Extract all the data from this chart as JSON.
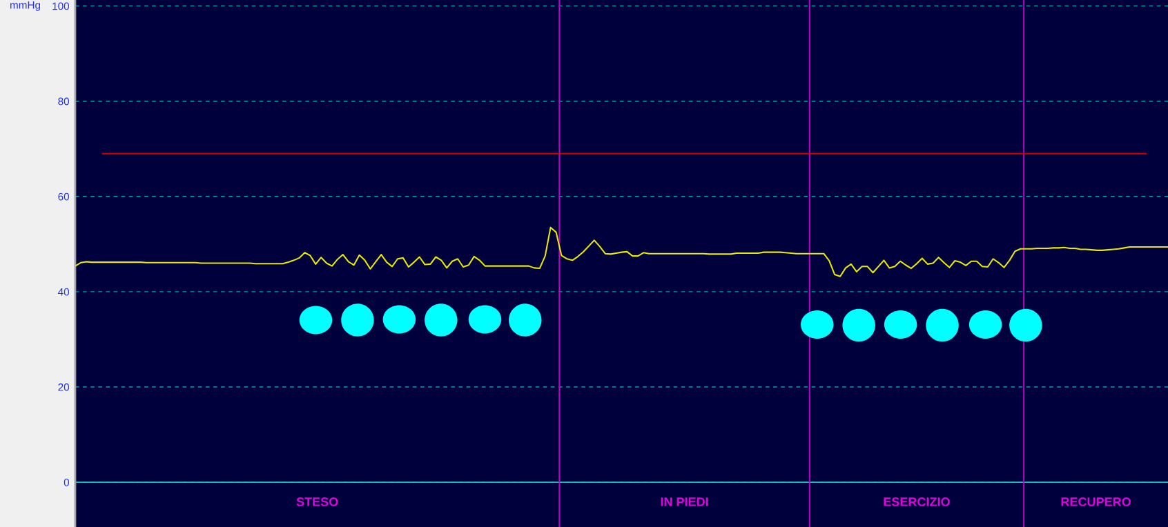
{
  "chart_data": {
    "type": "line",
    "ylabel": "mmHg",
    "categories": [
      null,
      null,
      null,
      null,
      null,
      null,
      null,
      null,
      null,
      null,
      null,
      null,
      null,
      null,
      null,
      null,
      null,
      null,
      null,
      null,
      null,
      null,
      null,
      null,
      null,
      null,
      null,
      null,
      null,
      null,
      null,
      null,
      null,
      null,
      null,
      null,
      null,
      null,
      null,
      null,
      null,
      null,
      null,
      null,
      null,
      null,
      null,
      null,
      null,
      null,
      null,
      null,
      null,
      null,
      null,
      null,
      null,
      null,
      null,
      null,
      null,
      null,
      null,
      null,
      null,
      null,
      null,
      null,
      null,
      null,
      null,
      null,
      null,
      null,
      null,
      null,
      null,
      null,
      null,
      null,
      null,
      null,
      null,
      null,
      null,
      null,
      null,
      null,
      null,
      null,
      null,
      null,
      null,
      null,
      null,
      null,
      null,
      null,
      null,
      null,
      null,
      null,
      null,
      null,
      null,
      null,
      null,
      null,
      null,
      null,
      null,
      null,
      null,
      null,
      null,
      null,
      null,
      null,
      null,
      null,
      null,
      null,
      null,
      null,
      null,
      null,
      null,
      null,
      null,
      null,
      null,
      null,
      null,
      null,
      null,
      null,
      null,
      null,
      null,
      null,
      null,
      null,
      null,
      null,
      null,
      null,
      null,
      null,
      null,
      null,
      null,
      null,
      null,
      null,
      null,
      null,
      null,
      null,
      null,
      null,
      null,
      null,
      null,
      null,
      null,
      null,
      null,
      null,
      null,
      null,
      null,
      null,
      null,
      null,
      null,
      null,
      null,
      null,
      null,
      null,
      null,
      null,
      null,
      null,
      null,
      null,
      null,
      null,
      null,
      null,
      null,
      null,
      null,
      null,
      null,
      null,
      null,
      null,
      null,
      null,
      null
    ],
    "ylim": [
      -9.4,
      101.25
    ],
    "yticks": [
      0,
      20,
      40,
      60,
      80,
      100
    ],
    "tick_labels": "y",
    "grid": "y",
    "marker": "none",
    "line_style": "solid",
    "series": [
      {
        "color": "#e8e800",
        "values": [
          45.4,
          46.1,
          46.3,
          46.2,
          46.2,
          46.2,
          46.2,
          46.2,
          46.2,
          46.2,
          46.2,
          46.2,
          46.2,
          46.1,
          46.1,
          46.1,
          46.1,
          46.1,
          46.1,
          46.1,
          46.1,
          46.1,
          46.1,
          46.0,
          46.0,
          46.0,
          46.0,
          46.0,
          46.0,
          46.0,
          46.0,
          46.0,
          46.0,
          45.9,
          45.9,
          45.9,
          45.9,
          45.9,
          45.9,
          46.2,
          46.6,
          47.1,
          48.2,
          47.6,
          45.8,
          47.2,
          46.0,
          45.4,
          46.8,
          47.8,
          46.3,
          45.6,
          47.7,
          46.6,
          44.8,
          46.3,
          47.8,
          46.2,
          45.3,
          46.9,
          47.1,
          45.2,
          46.2,
          47.3,
          45.7,
          45.8,
          47.3,
          46.6,
          45.0,
          46.4,
          46.9,
          45.2,
          45.6,
          47.4,
          46.6,
          45.4,
          45.4,
          45.4,
          45.4,
          45.4,
          45.4,
          45.4,
          45.4,
          45.4,
          45.0,
          44.9,
          47.5,
          53.5,
          52.5,
          47.6,
          46.9,
          46.6,
          47.4,
          48.4,
          49.6,
          50.8,
          49.5,
          48.0,
          47.9,
          48.1,
          48.3,
          48.4,
          47.5,
          47.5,
          48.2,
          48.0,
          48.0,
          48.0,
          48.0,
          48.0,
          48.0,
          48.0,
          48.0,
          48.0,
          48.0,
          48.0,
          47.9,
          47.9,
          47.9,
          47.9,
          47.9,
          48.1,
          48.1,
          48.1,
          48.1,
          48.1,
          48.3,
          48.3,
          48.3,
          48.3,
          48.2,
          48.1,
          48.0,
          48.0,
          48.0,
          48.0,
          48.0,
          48.0,
          46.5,
          43.6,
          43.2,
          45.0,
          45.8,
          44.2,
          45.3,
          45.3,
          44.0,
          45.3,
          46.6,
          45.0,
          45.3,
          46.4,
          45.6,
          44.9,
          45.9,
          47.0,
          45.8,
          46.0,
          47.2,
          46.1,
          45.1,
          46.5,
          46.2,
          45.5,
          46.4,
          46.4,
          45.3,
          45.2,
          46.9,
          46.1,
          45.1,
          46.6,
          48.5,
          49.0,
          49.0,
          49.0,
          49.1,
          49.1,
          49.1,
          49.2,
          49.2,
          49.3,
          49.1,
          49.1,
          48.9,
          48.9,
          48.8,
          48.7,
          48.7,
          48.8,
          48.9,
          49.0,
          49.2,
          49.4,
          49.4,
          49.4,
          49.4,
          49.4,
          49.4,
          49.4,
          49.4
        ]
      },
      {
        "color": "#d40000",
        "values": [
          null,
          null,
          null,
          null,
          null,
          69,
          69,
          69,
          69,
          69,
          69,
          69,
          69,
          69,
          69,
          69,
          69,
          69,
          69,
          69,
          69,
          69,
          69,
          69,
          69,
          69,
          69,
          69,
          69,
          69,
          69,
          69,
          69,
          69,
          69,
          69,
          69,
          69,
          69,
          69,
          69,
          69,
          69,
          69,
          69,
          69,
          69,
          69,
          69,
          69,
          69,
          69,
          69,
          69,
          69,
          69,
          69,
          69,
          69,
          69,
          69,
          69,
          69,
          69,
          69,
          69,
          69,
          69,
          69,
          69,
          69,
          69,
          69,
          69,
          69,
          69,
          69,
          69,
          69,
          69,
          69,
          69,
          69,
          69,
          69,
          69,
          69,
          69,
          69,
          69,
          69,
          69,
          69,
          69,
          69,
          69,
          69,
          69,
          69,
          69,
          69,
          69,
          69,
          69,
          69,
          69,
          69,
          69,
          69,
          69,
          69,
          69,
          69,
          69,
          69,
          69,
          69,
          69,
          69,
          69,
          69,
          69,
          69,
          69,
          69,
          69,
          69,
          69,
          69,
          69,
          69,
          69,
          69,
          69,
          69,
          69,
          69,
          69,
          69,
          69,
          69,
          69,
          69,
          69,
          69,
          69,
          69,
          69,
          69,
          69,
          69,
          69,
          69,
          69,
          69,
          69,
          69,
          69,
          69,
          69,
          69,
          69,
          69,
          69,
          69,
          69,
          69,
          69,
          69,
          69,
          69,
          69,
          69,
          69,
          69,
          69,
          69,
          69,
          69,
          69,
          69,
          69,
          69,
          69,
          69,
          69,
          69,
          69,
          69,
          69,
          69,
          69,
          69,
          69,
          69,
          69,
          69,
          null,
          null,
          null,
          null
        ]
      }
    ],
    "ref_lines": [
      {
        "axis": "y",
        "value": 0,
        "color": "#00c8c8",
        "line_style": "solid"
      }
    ],
    "annotations": [
      "STESO",
      "IN PIEDI",
      "ESERCIZIO",
      "RECUPERO"
    ]
  }
}
